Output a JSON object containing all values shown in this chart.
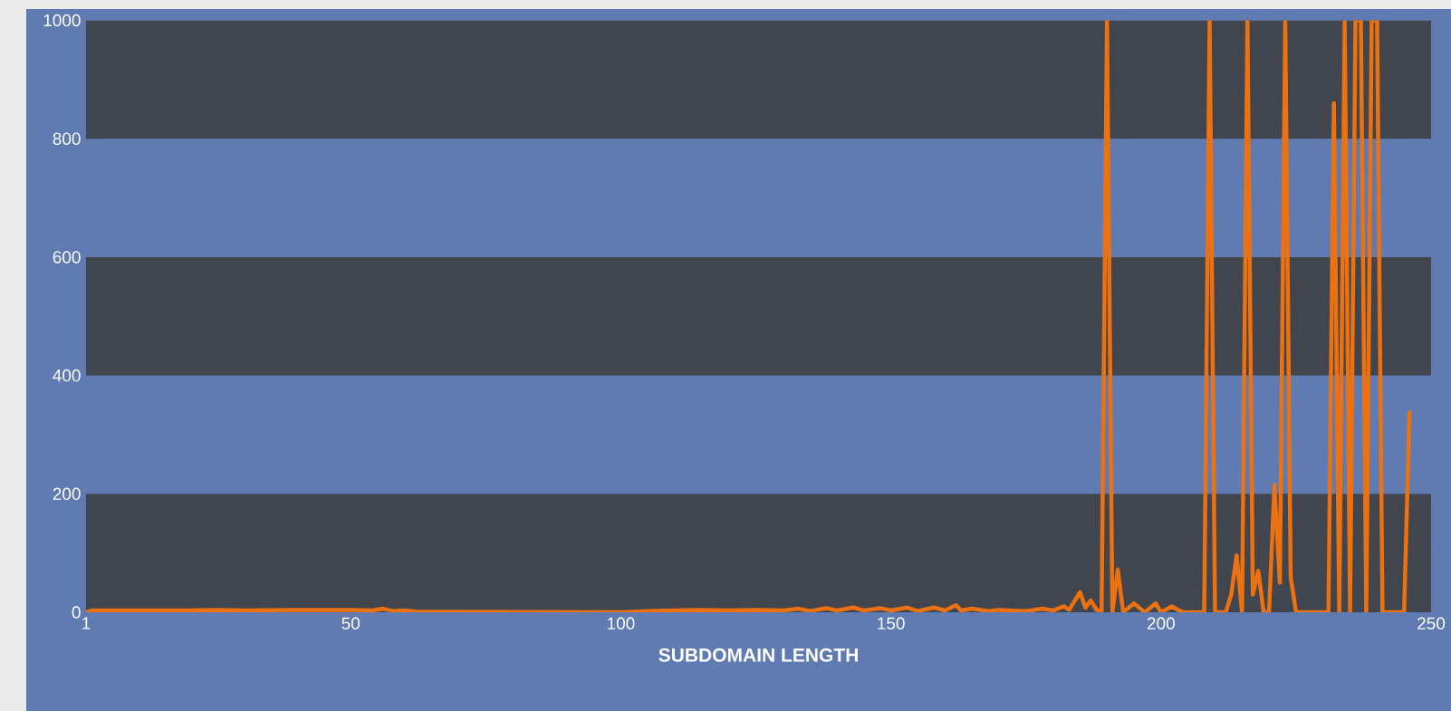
{
  "chart_data": {
    "type": "line",
    "xlabel": "SUBDOMAIN LENGTH",
    "x": [
      1,
      2,
      10,
      20,
      25,
      30,
      40,
      50,
      54,
      56,
      58,
      60,
      62,
      100,
      105,
      110,
      115,
      120,
      125,
      130,
      133,
      135,
      138,
      140,
      143,
      145,
      148,
      150,
      153,
      155,
      158,
      160,
      162,
      163,
      165,
      168,
      170,
      175,
      178,
      180,
      182,
      183,
      185,
      186,
      187,
      188,
      189,
      190,
      191,
      192,
      193,
      195,
      197,
      199,
      200,
      202,
      204,
      208,
      209,
      210,
      212,
      213,
      214,
      215,
      216,
      217,
      218,
      219,
      220,
      221,
      222,
      223,
      224,
      225,
      231,
      232,
      233,
      234,
      235,
      236,
      237,
      238,
      239,
      240,
      241,
      245,
      246
    ],
    "values": [
      0,
      3,
      3,
      3,
      4,
      3,
      4,
      4,
      3,
      6,
      2,
      3,
      1,
      0,
      2,
      3,
      4,
      3,
      4,
      3,
      6,
      2,
      7,
      3,
      8,
      3,
      7,
      3,
      8,
      2,
      8,
      3,
      12,
      3,
      6,
      2,
      4,
      2,
      6,
      3,
      10,
      4,
      34,
      8,
      20,
      5,
      0,
      1000,
      0,
      72,
      0,
      15,
      0,
      15,
      0,
      10,
      0,
      0,
      1000,
      0,
      0,
      30,
      96,
      0,
      1000,
      30,
      70,
      0,
      0,
      215,
      50,
      1000,
      60,
      0,
      0,
      860,
      0,
      1000,
      0,
      1000,
      1000,
      0,
      1000,
      1000,
      0,
      0,
      340
    ],
    "color": "#ec7211",
    "line_style": "solid",
    "xlim": [
      1,
      250
    ],
    "xticks": [
      1,
      50,
      100,
      150,
      200,
      250
    ],
    "ylim": [
      0,
      1000
    ],
    "yticks": [
      0,
      200,
      400,
      600,
      800,
      1000
    ],
    "bands": [
      {
        "axis": "y",
        "from": 0,
        "to": 200,
        "color": "#40454e"
      },
      {
        "axis": "y",
        "from": 400,
        "to": 600,
        "color": "#40454e"
      },
      {
        "axis": "y",
        "from": 800,
        "to": 1000,
        "color": "#40454e"
      }
    ]
  }
}
